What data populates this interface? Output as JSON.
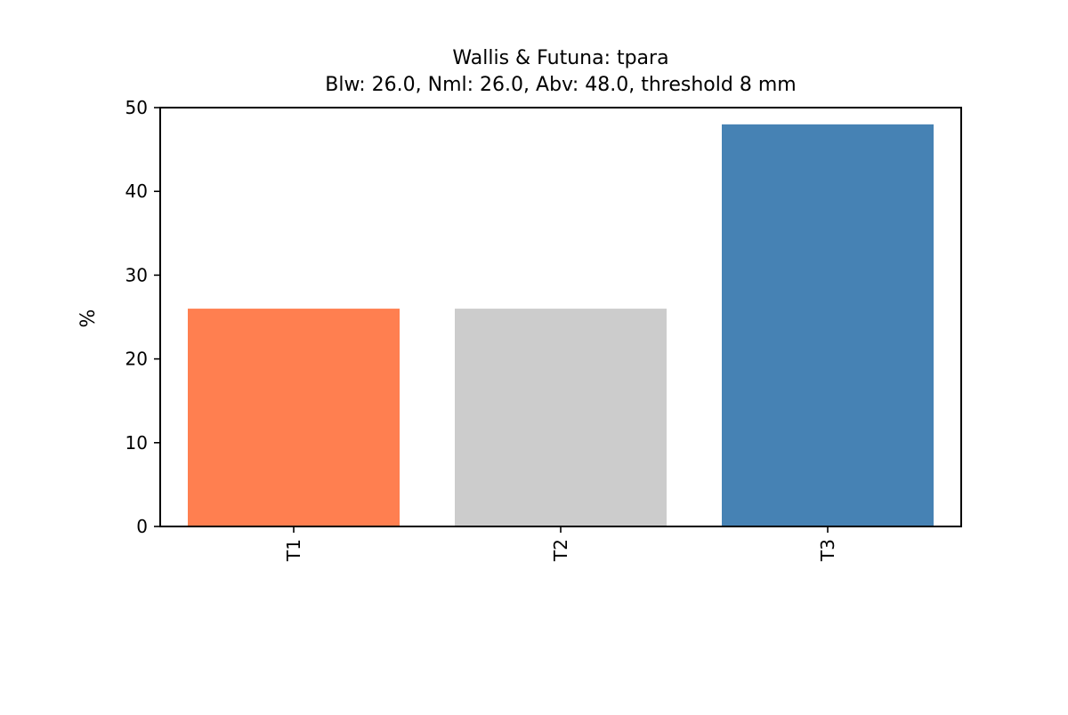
{
  "chart_data": {
    "type": "bar",
    "title": "Wallis & Futuna: tpara",
    "subtitle": "Blw: 26.0, Nml: 26.0, Abv: 48.0, threshold 8 mm",
    "xlabel": "",
    "ylabel": "%",
    "categories": [
      "T1",
      "T2",
      "T3"
    ],
    "values": [
      26.0,
      26.0,
      48.0
    ],
    "colors": [
      "#ff7f50",
      "#cccccc",
      "#4682b4"
    ],
    "ylim": [
      0,
      50
    ],
    "yticks": [
      0,
      10,
      20,
      30,
      40,
      50
    ],
    "grid": false,
    "legend": "none"
  }
}
